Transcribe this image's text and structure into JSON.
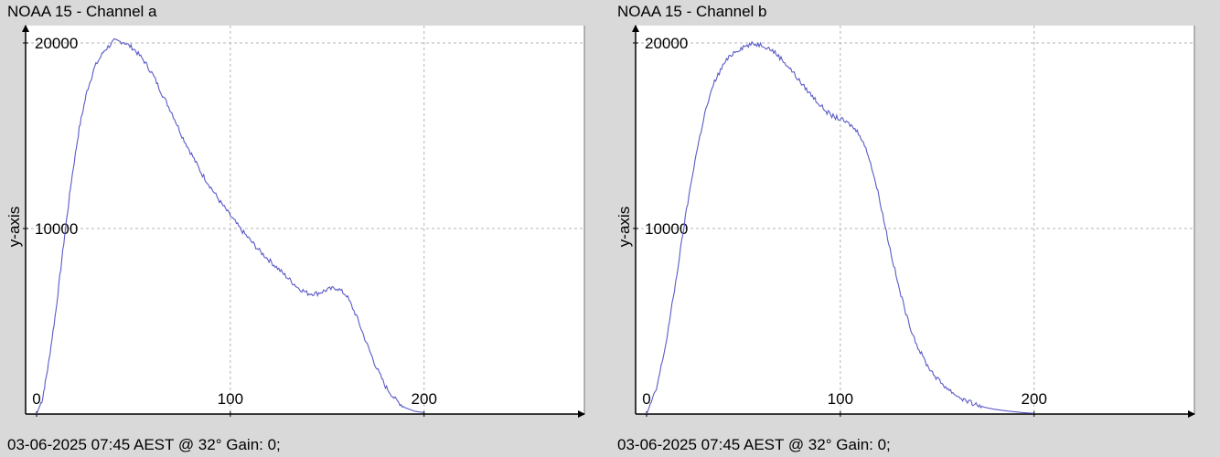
{
  "chart_data": [
    {
      "type": "line",
      "title": "NOAA 15 - Channel a",
      "ylabel": "y-axis",
      "xlabel": "",
      "footer": "03-06-2025 07:45 AEST @ 32° Gain: 0;",
      "xlim": [
        0,
        270
      ],
      "ylim": [
        0,
        20000
      ],
      "x_ticks": [
        0,
        100,
        200
      ],
      "y_ticks": [
        10000,
        20000
      ],
      "grid": true,
      "line_color": "#5a5ac8",
      "series": [
        {
          "x": [
            0,
            3,
            6,
            10,
            14,
            18,
            22,
            26,
            30,
            35,
            40,
            45,
            50,
            55,
            60,
            65,
            70,
            75,
            80,
            85,
            90,
            95,
            100,
            105,
            110,
            115,
            120,
            125,
            130,
            135,
            140,
            145,
            150,
            155,
            160,
            165,
            170,
            175,
            180,
            185,
            190,
            195,
            200
          ],
          "y": [
            0,
            800,
            2600,
            5600,
            9200,
            12600,
            15400,
            17400,
            18700,
            19600,
            20100,
            20050,
            19700,
            19100,
            18300,
            17200,
            16200,
            15000,
            14000,
            13000,
            12200,
            11400,
            10700,
            10000,
            9400,
            8800,
            8300,
            7800,
            7300,
            6800,
            6500,
            6500,
            6700,
            6800,
            6400,
            5300,
            3900,
            2600,
            1500,
            800,
            350,
            150,
            80
          ]
        }
      ]
    },
    {
      "type": "line",
      "title": "NOAA 15 - Channel b",
      "ylabel": "y-axis",
      "xlabel": "",
      "footer": "03-06-2025 07:45 AEST @ 32° Gain: 0;",
      "xlim": [
        0,
        270
      ],
      "ylim": [
        0,
        20000
      ],
      "x_ticks": [
        0,
        100,
        200
      ],
      "y_ticks": [
        10000,
        20000
      ],
      "grid": true,
      "line_color": "#5a5ac8",
      "series": [
        {
          "x": [
            0,
            5,
            10,
            15,
            20,
            25,
            30,
            35,
            40,
            45,
            50,
            55,
            60,
            65,
            70,
            75,
            80,
            85,
            90,
            95,
            100,
            105,
            110,
            115,
            120,
            125,
            130,
            135,
            140,
            145,
            150,
            155,
            160,
            165,
            170,
            175,
            180,
            185,
            190,
            195,
            200
          ],
          "y": [
            0,
            1300,
            3800,
            7100,
            10600,
            13700,
            16200,
            17900,
            18900,
            19500,
            19800,
            19950,
            19900,
            19600,
            19100,
            18500,
            17800,
            17200,
            16600,
            16100,
            15900,
            15600,
            15100,
            13800,
            11700,
            9200,
            6900,
            5000,
            3600,
            2600,
            1900,
            1400,
            1000,
            700,
            500,
            350,
            250,
            180,
            120,
            70,
            40
          ]
        }
      ]
    }
  ]
}
